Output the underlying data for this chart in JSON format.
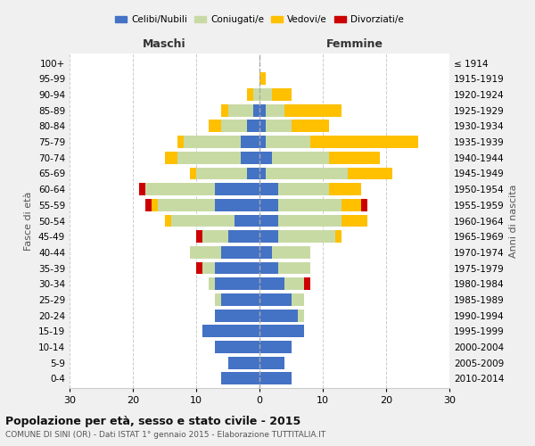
{
  "age_groups": [
    "0-4",
    "5-9",
    "10-14",
    "15-19",
    "20-24",
    "25-29",
    "30-34",
    "35-39",
    "40-44",
    "45-49",
    "50-54",
    "55-59",
    "60-64",
    "65-69",
    "70-74",
    "75-79",
    "80-84",
    "85-89",
    "90-94",
    "95-99",
    "100+"
  ],
  "birth_years": [
    "2010-2014",
    "2005-2009",
    "2000-2004",
    "1995-1999",
    "1990-1994",
    "1985-1989",
    "1980-1984",
    "1975-1979",
    "1970-1974",
    "1965-1969",
    "1960-1964",
    "1955-1959",
    "1950-1954",
    "1945-1949",
    "1940-1944",
    "1935-1939",
    "1930-1934",
    "1925-1929",
    "1920-1924",
    "1915-1919",
    "≤ 1914"
  ],
  "colors": {
    "celibe": "#4472C4",
    "coniugato": "#c8daa4",
    "vedovo": "#ffc000",
    "divorziato": "#cc0000"
  },
  "maschi": {
    "celibe": [
      6,
      5,
      7,
      9,
      7,
      6,
      7,
      7,
      6,
      5,
      4,
      7,
      7,
      2,
      3,
      3,
      2,
      1,
      0,
      0,
      0
    ],
    "coniugato": [
      0,
      0,
      0,
      0,
      0,
      1,
      1,
      2,
      5,
      4,
      10,
      9,
      11,
      8,
      10,
      9,
      4,
      4,
      1,
      0,
      0
    ],
    "vedovo": [
      0,
      0,
      0,
      0,
      0,
      0,
      0,
      0,
      0,
      0,
      1,
      1,
      0,
      1,
      2,
      1,
      2,
      1,
      1,
      0,
      0
    ],
    "divorziato": [
      0,
      0,
      0,
      0,
      0,
      0,
      0,
      1,
      0,
      1,
      0,
      1,
      1,
      0,
      0,
      0,
      0,
      0,
      0,
      0,
      0
    ]
  },
  "femmine": {
    "celibe": [
      5,
      4,
      5,
      7,
      6,
      5,
      4,
      3,
      2,
      3,
      3,
      3,
      3,
      1,
      2,
      1,
      1,
      1,
      0,
      0,
      0
    ],
    "coniugato": [
      0,
      0,
      0,
      0,
      1,
      2,
      3,
      5,
      6,
      9,
      10,
      10,
      8,
      13,
      9,
      7,
      4,
      3,
      2,
      0,
      0
    ],
    "vedovo": [
      0,
      0,
      0,
      0,
      0,
      0,
      0,
      0,
      0,
      1,
      4,
      3,
      5,
      7,
      8,
      17,
      6,
      9,
      3,
      1,
      0
    ],
    "divorziato": [
      0,
      0,
      0,
      0,
      0,
      0,
      1,
      0,
      0,
      0,
      0,
      1,
      0,
      0,
      0,
      0,
      0,
      0,
      0,
      0,
      0
    ]
  },
  "title": "Popolazione per età, sesso e stato civile - 2015",
  "subtitle": "COMUNE DI SINI (OR) - Dati ISTAT 1° gennaio 2015 - Elaborazione TUTTITALIA.IT",
  "ylabel_left": "Fasce di età",
  "ylabel_right": "Anni di nascita",
  "xlabel_left": "Maschi",
  "xlabel_right": "Femmine",
  "xlim": 30,
  "bg_color": "#f0f0f0",
  "plot_bg": "#ffffff",
  "legend_labels": [
    "Celibi/Nubili",
    "Coniugati/e",
    "Vedovi/e",
    "Divorziati/e"
  ]
}
